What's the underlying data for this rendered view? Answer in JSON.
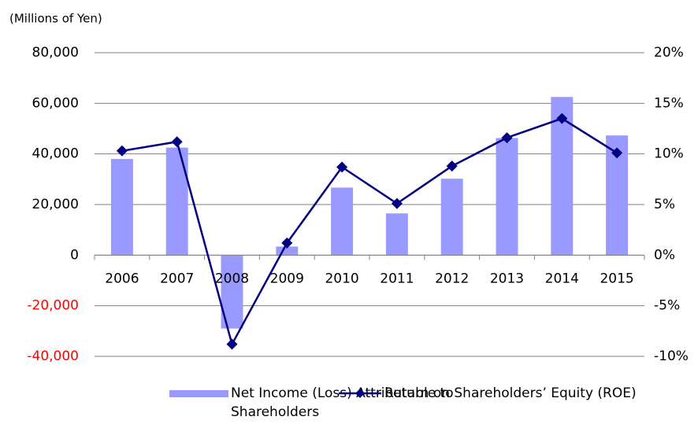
{
  "chart_data": {
    "type": "bar_line",
    "y_axis_label": "(Millions of  Yen)",
    "categories": [
      "2006",
      "2007",
      "2008",
      "2009",
      "2010",
      "2011",
      "2012",
      "2013",
      "2014",
      "2015"
    ],
    "series": [
      {
        "name": "Net Income (Loss) Attributable to Shareholders",
        "type": "bar",
        "color": "#9999ff",
        "values": [
          38000,
          42500,
          -29000,
          3400,
          26700,
          16500,
          30200,
          46300,
          62500,
          47300
        ]
      },
      {
        "name": "Return on Shareholders’ Equity (ROE)",
        "type": "line",
        "axis": "y2",
        "color": "#000080",
        "values": [
          10.3,
          11.2,
          -8.8,
          1.2,
          8.7,
          5.1,
          8.8,
          11.6,
          13.5,
          10.1
        ]
      }
    ],
    "ylim": [
      -40000,
      80000
    ],
    "yticks": [
      {
        "value": -40000,
        "label": "-40,000"
      },
      {
        "value": -20000,
        "label": "-20,000"
      },
      0,
      {
        "value": 20000,
        "label": "20,000"
      },
      {
        "value": 40000,
        "label": "40,000"
      },
      {
        "value": 60000,
        "label": "60,000"
      },
      {
        "value": 80000,
        "label": "80,000"
      }
    ],
    "y2lim": [
      -10,
      20
    ],
    "y2ticks": [
      {
        "value": -10,
        "label": "-10%"
      },
      {
        "value": -5,
        "label": "-5%"
      },
      {
        "value": 0,
        "label": "0%"
      },
      {
        "value": 5,
        "label": "5%"
      },
      {
        "value": 10,
        "label": "10%"
      },
      {
        "value": 15,
        "label": "15%"
      },
      {
        "value": 20,
        "label": "20%"
      }
    ],
    "negative_tick_color": "#ff0000",
    "grid": true
  }
}
